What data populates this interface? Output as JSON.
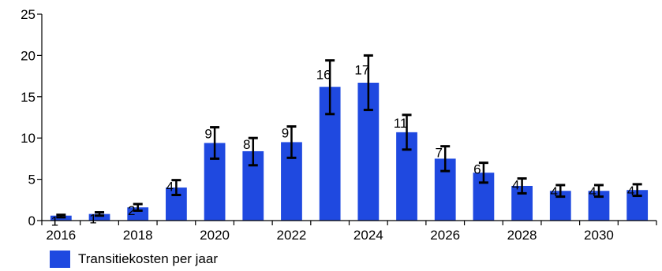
{
  "chart_data": {
    "type": "bar",
    "categories": [
      "2016",
      "2017",
      "2018",
      "2019",
      "2020",
      "2021",
      "2022",
      "2023",
      "2024",
      "2025",
      "2026",
      "2027",
      "2028",
      "2029",
      "2030",
      "2031"
    ],
    "x_tick_labels": [
      "2016",
      "2018",
      "2020",
      "2022",
      "2024",
      "2026",
      "2028",
      "2030"
    ],
    "series": [
      {
        "name": "Transitiekosten per jaar",
        "color": "#1f49e0",
        "values": [
          0.6,
          0.8,
          1.6,
          4.0,
          9.4,
          8.4,
          9.5,
          16.2,
          16.7,
          10.7,
          7.5,
          5.8,
          4.2,
          3.6,
          3.6,
          3.7
        ],
        "data_labels": [
          "1",
          "1",
          "2",
          "4",
          "9",
          "8",
          "9",
          "16",
          "17",
          "11",
          "7",
          "6",
          "4",
          "4",
          "4",
          "4"
        ],
        "error_low": [
          0.4,
          0.6,
          1.2,
          3.1,
          7.5,
          6.7,
          7.6,
          12.9,
          13.4,
          8.6,
          6.0,
          4.6,
          3.3,
          2.9,
          2.9,
          3.0
        ],
        "error_high": [
          0.7,
          1.0,
          2.0,
          4.9,
          11.3,
          10.0,
          11.4,
          19.4,
          20.0,
          12.8,
          9.0,
          7.0,
          5.1,
          4.3,
          4.3,
          4.4
        ]
      }
    ],
    "y_ticks": [
      "0",
      "5",
      "10",
      "15",
      "20",
      "25"
    ],
    "ylim": [
      0,
      25
    ],
    "grid": false,
    "legend_position": "bottom-left"
  }
}
